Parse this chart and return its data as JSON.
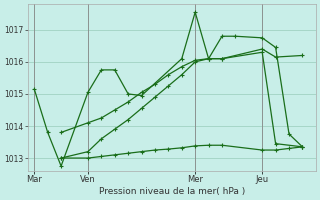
{
  "bg_color": "#c8eee8",
  "grid_color": "#99ccbb",
  "line_color": "#1a6e1a",
  "title": "Pression niveau de la mer( hPa )",
  "xlabel_ticks": [
    "Mar",
    "Ven",
    "Mer",
    "Jeu"
  ],
  "xlabel_tick_positions": [
    0,
    4,
    12,
    17
  ],
  "ylim": [
    1012.6,
    1017.8
  ],
  "yticks": [
    1013,
    1014,
    1015,
    1016,
    1017
  ],
  "xlim": [
    -0.5,
    21
  ],
  "series1_x": [
    0,
    1,
    2,
    4,
    5,
    6,
    7,
    8,
    11,
    12,
    13,
    14,
    15,
    17,
    18,
    19,
    20
  ],
  "series1_y": [
    1015.15,
    1013.8,
    1012.75,
    1015.05,
    1015.75,
    1015.75,
    1015.0,
    1014.95,
    1016.1,
    1017.55,
    1016.1,
    1016.8,
    1016.8,
    1016.75,
    1016.45,
    1013.75,
    1013.35
  ],
  "series2_x": [
    2,
    4,
    5,
    6,
    7,
    8,
    9,
    10,
    11,
    12,
    13,
    14,
    17,
    18,
    19,
    20
  ],
  "series2_y": [
    1013.0,
    1013.0,
    1013.05,
    1013.1,
    1013.15,
    1013.2,
    1013.25,
    1013.28,
    1013.32,
    1013.38,
    1013.4,
    1013.4,
    1013.25,
    1013.25,
    1013.3,
    1013.35
  ],
  "series3_x": [
    2,
    4,
    5,
    6,
    7,
    8,
    9,
    10,
    11,
    12,
    13,
    14,
    17,
    18,
    20
  ],
  "series3_y": [
    1013.0,
    1013.2,
    1013.6,
    1013.9,
    1014.2,
    1014.55,
    1014.9,
    1015.25,
    1015.6,
    1016.0,
    1016.1,
    1016.1,
    1016.4,
    1016.15,
    1016.2
  ],
  "series4_x": [
    2,
    4,
    5,
    6,
    7,
    8,
    9,
    10,
    11,
    12,
    13,
    14,
    17,
    18,
    20
  ],
  "series4_y": [
    1013.8,
    1014.1,
    1014.25,
    1014.5,
    1014.75,
    1015.05,
    1015.3,
    1015.6,
    1015.85,
    1016.05,
    1016.1,
    1016.1,
    1016.3,
    1013.45,
    1013.35
  ],
  "vline_positions": [
    0,
    4,
    12,
    17
  ],
  "vline_color": "#888888"
}
